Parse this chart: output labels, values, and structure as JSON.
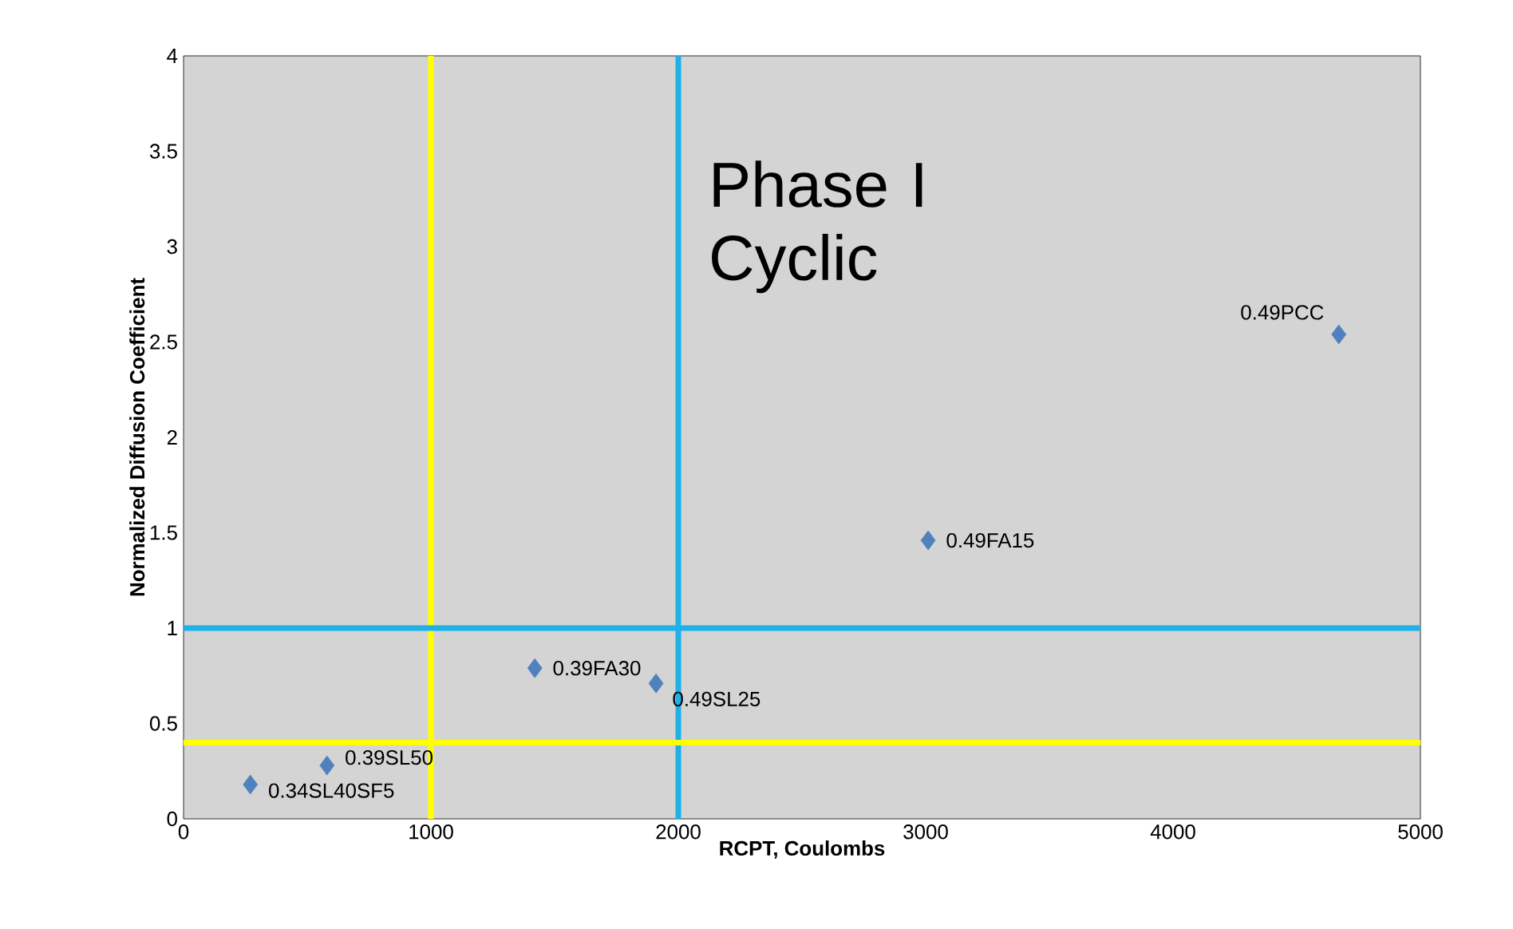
{
  "chart_data": {
    "type": "scatter",
    "xlabel": "RCPT, Coulombs",
    "ylabel": "Normalized Diffusion Coefficient",
    "x": [
      270,
      580,
      1420,
      1910,
      3010,
      4670
    ],
    "values": [
      0.18,
      0.28,
      0.79,
      0.71,
      1.46,
      2.54
    ],
    "color": "#4f81bd",
    "marker": "diamond",
    "grid": false,
    "xlim": [
      0,
      5000
    ],
    "xticks": [
      0,
      1000,
      2000,
      3000,
      4000,
      5000
    ],
    "ylim": [
      0,
      4
    ],
    "yticks": [
      0,
      0.5,
      1,
      1.5,
      2,
      2.5,
      3,
      3.5,
      4
    ],
    "ref_lines": [
      {
        "axis": "x",
        "value": 1000,
        "color": "#ffff00"
      },
      {
        "axis": "x",
        "value": 2000,
        "color": "#1fb0e8"
      },
      {
        "axis": "y",
        "value": 1,
        "color": "#1fb0e8"
      },
      {
        "axis": "y",
        "value": 0.4,
        "color": "#ffff00"
      }
    ],
    "annotations": [
      {
        "text": "0.34SL40SF5",
        "x": 270,
        "y": 0.18
      },
      {
        "text": "0.39SL50",
        "x": 580,
        "y": 0.28
      },
      {
        "text": "0.39FA30",
        "x": 1420,
        "y": 0.79
      },
      {
        "text": "0.49SL25",
        "x": 1910,
        "y": 0.71
      },
      {
        "text": "0.49FA15",
        "x": 3010,
        "y": 1.46
      },
      {
        "text": "0.49PCC",
        "x": 4670,
        "y": 2.54
      },
      "Phase I Cyclic"
    ]
  }
}
